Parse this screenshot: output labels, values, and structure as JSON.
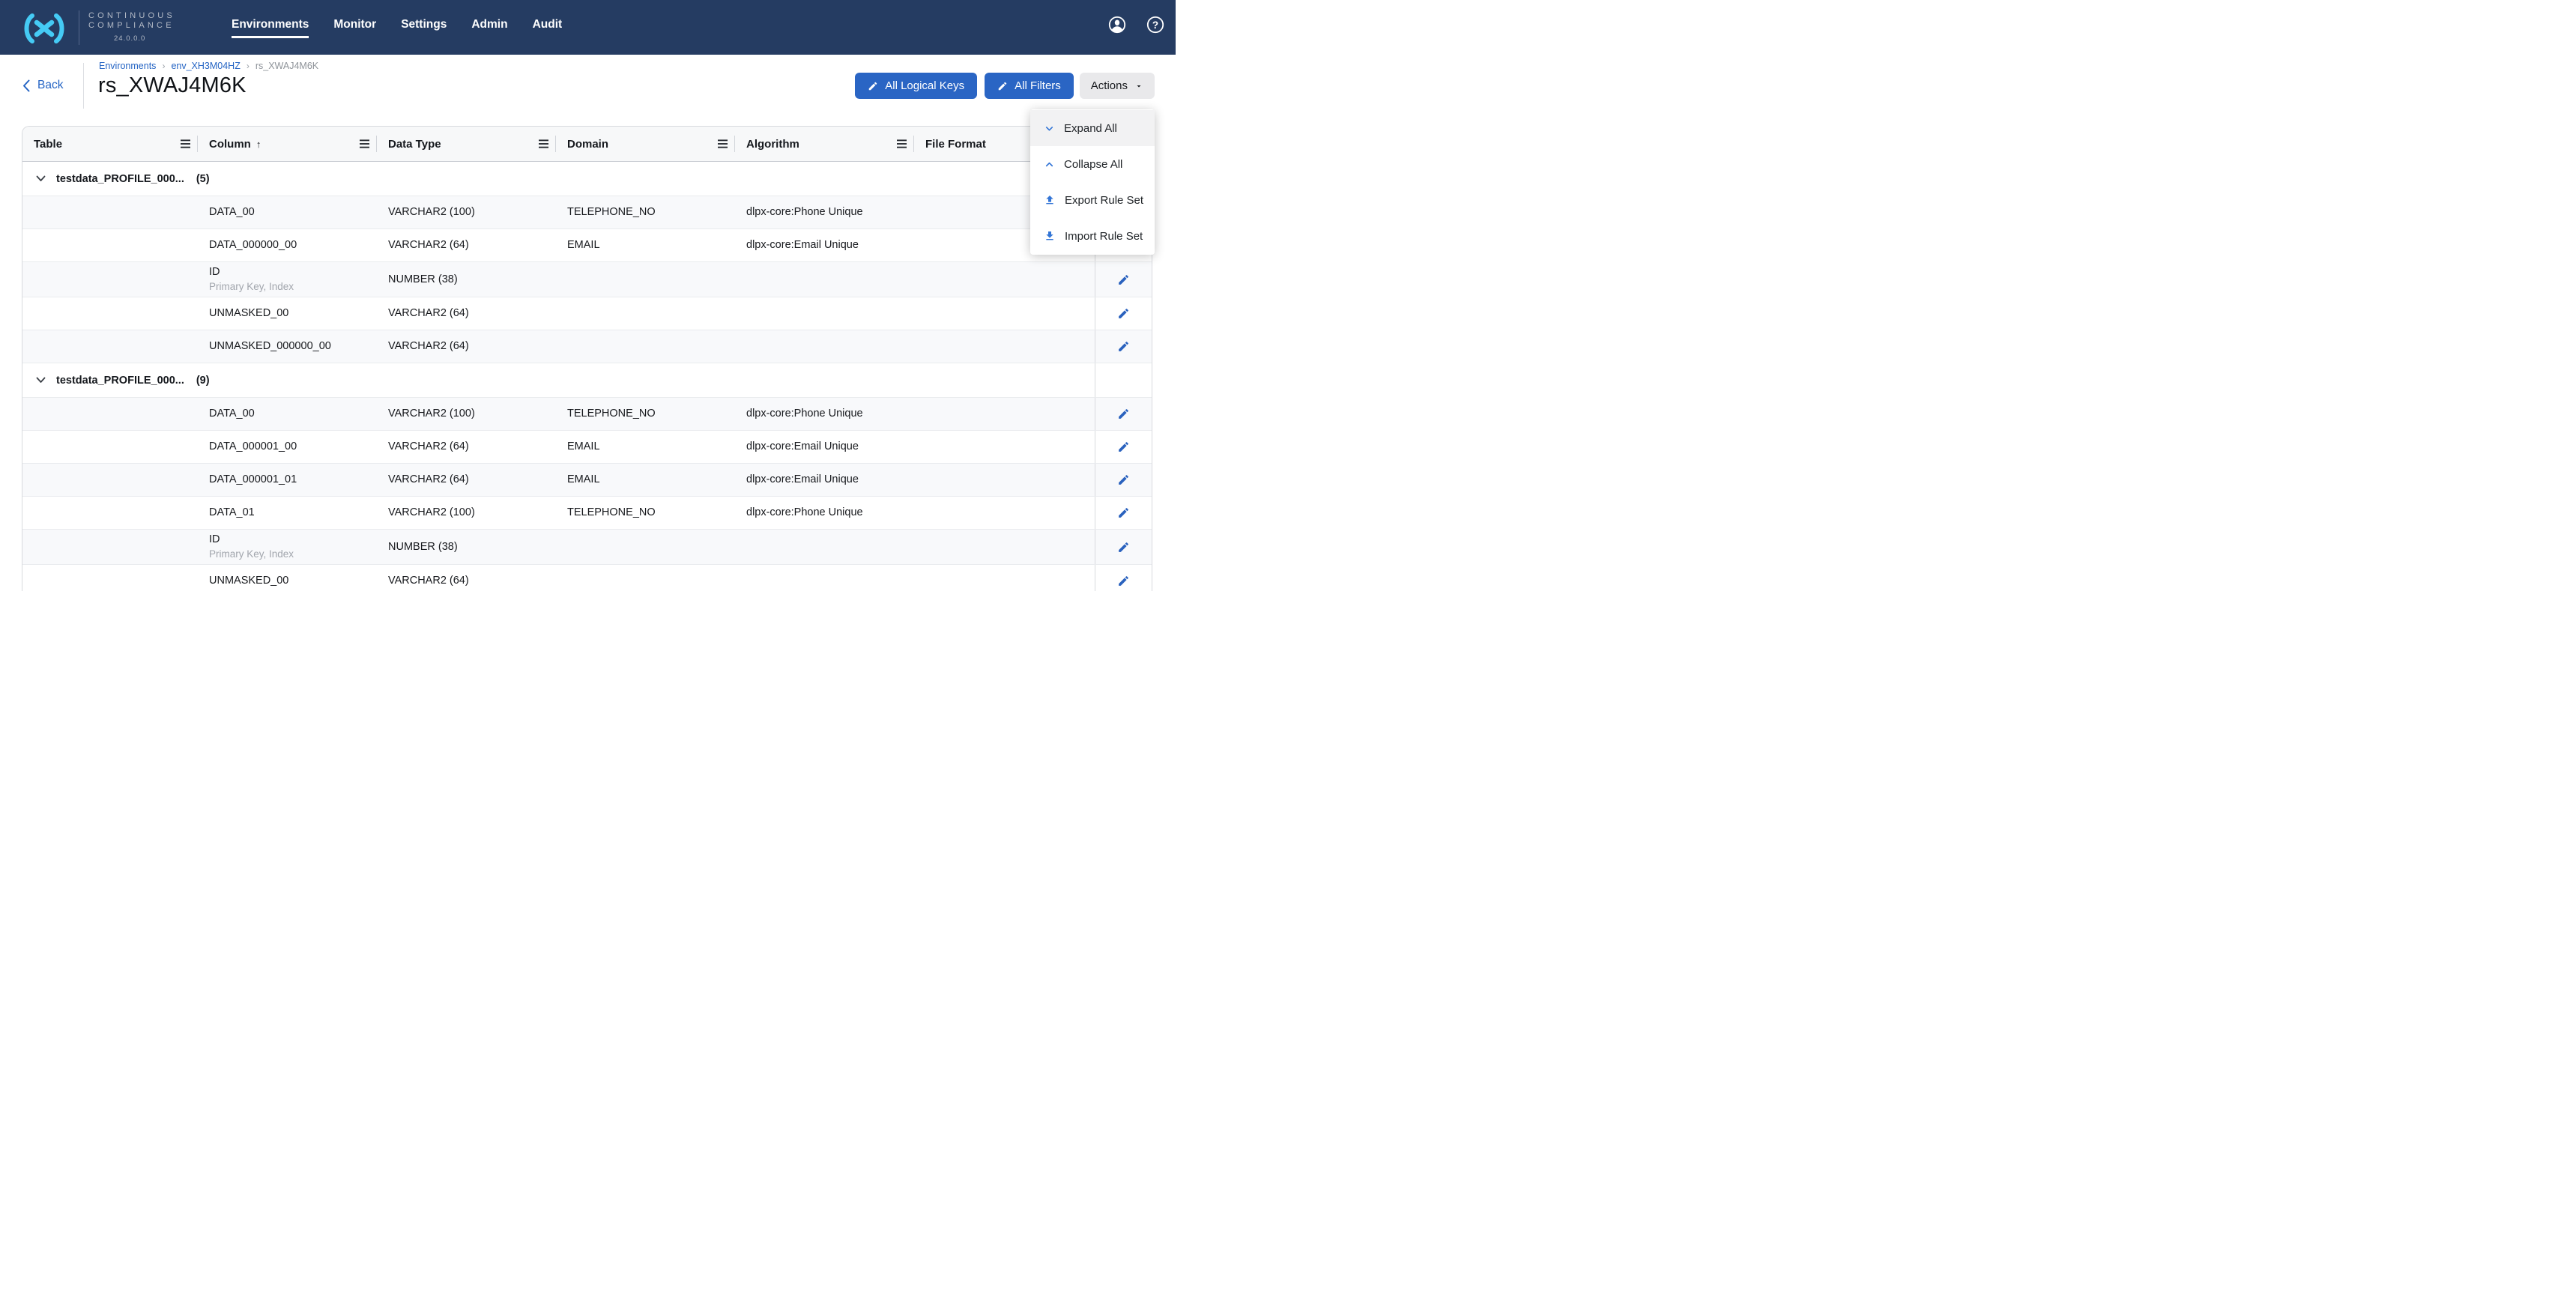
{
  "colors": {
    "navbar_bg": "#253C62",
    "logo_cyan": "#45CBF5",
    "accent_blue": "#2A65C4",
    "link_blue": "#2464C4",
    "menu_icon_blue": "#3375D6",
    "row_alt_bg": "#F8F9FB"
  },
  "navbar": {
    "brand": {
      "line1": "CONTINUOUS",
      "line2": "COMPLIANCE",
      "version": "24.0.0.0"
    },
    "items": [
      {
        "label": "Environments",
        "active": true
      },
      {
        "label": "Monitor",
        "active": false
      },
      {
        "label": "Settings",
        "active": false
      },
      {
        "label": "Admin",
        "active": false
      },
      {
        "label": "Audit",
        "active": false
      }
    ]
  },
  "breadcrumb": [
    "Environments",
    "env_XH3M04HZ",
    "rs_XWAJ4M6K"
  ],
  "back_label": "Back",
  "page_title": "rs_XWAJ4M6K",
  "toolbar": {
    "all_logical_keys_label": "All Logical Keys",
    "all_filters_label": "All Filters",
    "actions_label": "Actions"
  },
  "actions_menu": [
    {
      "label": "Expand All",
      "icon": "chevron-down",
      "highlighted": true
    },
    {
      "label": "Collapse All",
      "icon": "chevron-up",
      "highlighted": false
    },
    {
      "label": "Export Rule Set",
      "icon": "upload",
      "highlighted": false
    },
    {
      "label": "Import Rule Set",
      "icon": "download",
      "highlighted": false
    }
  ],
  "table": {
    "headers": [
      {
        "label": "Table",
        "sorted": null
      },
      {
        "label": "Column",
        "sorted": "asc"
      },
      {
        "label": "Data Type",
        "sorted": null
      },
      {
        "label": "Domain",
        "sorted": null
      },
      {
        "label": "Algorithm",
        "sorted": null
      },
      {
        "label": "File Format",
        "sorted": null
      }
    ],
    "groups": [
      {
        "name": "testdata_PROFILE_000...",
        "count": "(5)",
        "expanded": true,
        "rows": [
          {
            "column": "DATA_00",
            "sub": "",
            "data_type": "VARCHAR2 (100)",
            "domain": "TELEPHONE_NO",
            "algorithm": "dlpx-core:Phone Unique",
            "file_format": ""
          },
          {
            "column": "DATA_000000_00",
            "sub": "",
            "data_type": "VARCHAR2 (64)",
            "domain": "EMAIL",
            "algorithm": "dlpx-core:Email Unique",
            "file_format": ""
          },
          {
            "column": "ID",
            "sub": "Primary Key, Index",
            "data_type": "NUMBER (38)",
            "domain": "",
            "algorithm": "",
            "file_format": ""
          },
          {
            "column": "UNMASKED_00",
            "sub": "",
            "data_type": "VARCHAR2 (64)",
            "domain": "",
            "algorithm": "",
            "file_format": ""
          },
          {
            "column": "UNMASKED_000000_00",
            "sub": "",
            "data_type": "VARCHAR2 (64)",
            "domain": "",
            "algorithm": "",
            "file_format": ""
          }
        ]
      },
      {
        "name": "testdata_PROFILE_000...",
        "count": "(9)",
        "expanded": true,
        "rows": [
          {
            "column": "DATA_00",
            "sub": "",
            "data_type": "VARCHAR2 (100)",
            "domain": "TELEPHONE_NO",
            "algorithm": "dlpx-core:Phone Unique",
            "file_format": ""
          },
          {
            "column": "DATA_000001_00",
            "sub": "",
            "data_type": "VARCHAR2 (64)",
            "domain": "EMAIL",
            "algorithm": "dlpx-core:Email Unique",
            "file_format": ""
          },
          {
            "column": "DATA_000001_01",
            "sub": "",
            "data_type": "VARCHAR2 (64)",
            "domain": "EMAIL",
            "algorithm": "dlpx-core:Email Unique",
            "file_format": ""
          },
          {
            "column": "DATA_01",
            "sub": "",
            "data_type": "VARCHAR2 (100)",
            "domain": "TELEPHONE_NO",
            "algorithm": "dlpx-core:Phone Unique",
            "file_format": ""
          },
          {
            "column": "ID",
            "sub": "Primary Key, Index",
            "data_type": "NUMBER (38)",
            "domain": "",
            "algorithm": "",
            "file_format": ""
          },
          {
            "column": "UNMASKED_00",
            "sub": "",
            "data_type": "VARCHAR2 (64)",
            "domain": "",
            "algorithm": "",
            "file_format": ""
          }
        ]
      }
    ]
  }
}
